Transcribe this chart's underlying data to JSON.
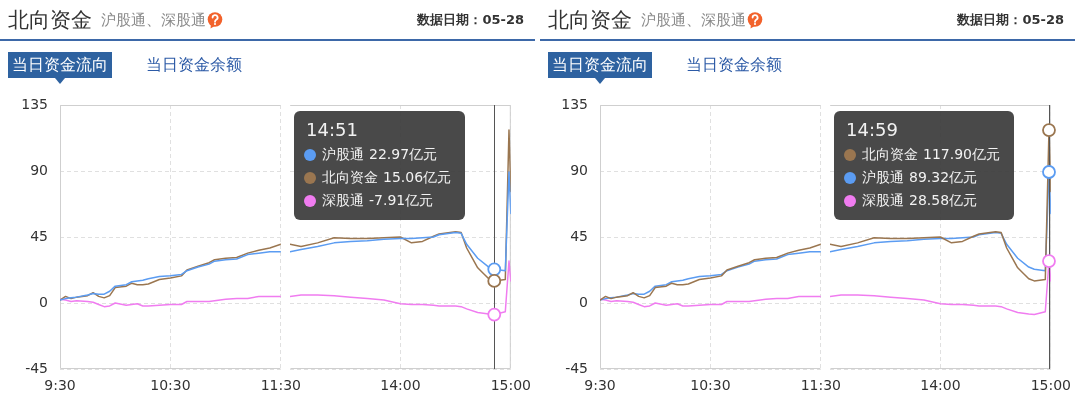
{
  "chart_data": [
    {
      "type": "line",
      "title": "北向资金",
      "subtitle": "沪股通、深股通",
      "annotations": [
        "数据日期：05-28",
        "当日资金流向",
        "当日资金余额"
      ],
      "x": [
        9.5,
        9.55,
        9.6,
        9.65,
        9.75,
        9.8,
        9.85,
        9.9,
        9.95,
        10,
        10.1,
        10.15,
        10.2,
        10.25,
        10.3,
        10.4,
        10.5,
        10.6,
        10.65,
        10.75,
        10.85,
        10.9,
        11,
        11.1,
        11.2,
        11.3,
        11.4,
        11.5
      ],
      "xlim": [
        9.5,
        11.5
      ],
      "xticks": [
        {
          "value": 9.5,
          "label": "9:30"
        },
        {
          "value": 10.5,
          "label": "10:30"
        },
        {
          "value": 11.5,
          "label": "11:30"
        }
      ],
      "ylim": [
        -45,
        135
      ],
      "yticks": [
        -45,
        0,
        45,
        90,
        135
      ],
      "grid": true,
      "series": [
        {
          "color": "#5b9cf2",
          "values": [
            2,
            3,
            3.5,
            4,
            5.5,
            6.5,
            6,
            6,
            8,
            11.5,
            12.5,
            14.5,
            15,
            15.5,
            16.5,
            18,
            18.5,
            19.5,
            22,
            24.5,
            26.5,
            28.5,
            29.5,
            30,
            33,
            34,
            35,
            35
          ]
        },
        {
          "color": "#9a7650",
          "values": [
            2,
            4.5,
            3,
            4,
            5,
            7,
            4.5,
            3.5,
            5,
            10.5,
            11.5,
            13.5,
            12.5,
            12.5,
            13,
            16,
            17,
            18.5,
            22.5,
            25,
            27.5,
            29.5,
            30.5,
            31,
            34,
            36,
            37.5,
            40
          ]
        },
        {
          "color": "#f07cf0",
          "values": [
            2.5,
            2,
            1,
            1.5,
            1,
            0.5,
            -1,
            -2.5,
            -2,
            0,
            -1.5,
            -1,
            -0.5,
            -2,
            -2,
            -1.5,
            -1,
            -1,
            1,
            1,
            1,
            1.5,
            2.5,
            3,
            3,
            4.5,
            4.5,
            4.5
          ]
        }
      ]
    },
    {
      "type": "line",
      "annotations": [
        "14:51",
        "22.97亿元",
        "15.06亿元",
        "-7.91亿元"
      ],
      "x": [
        13,
        13.1,
        13.25,
        13.4,
        13.55,
        13.7,
        13.85,
        14,
        14.1,
        14.2,
        14.3,
        14.35,
        14.5,
        14.55,
        14.6,
        14.7,
        14.8,
        14.85,
        14.95,
        14.9833,
        15
      ],
      "xlim": [
        13,
        15
      ],
      "xticks": [
        {
          "value": 14,
          "label": "14:00"
        },
        {
          "value": 15,
          "label": "15:00"
        }
      ],
      "ylim": [
        -45,
        135
      ],
      "yticks": [
        -45,
        0,
        45,
        90,
        135
      ],
      "grid": true,
      "tick_labels": "x",
      "legend": "top left",
      "ref_lines": [
        {
          "axis": "x",
          "value": 14.85,
          "color": "#555555"
        }
      ],
      "series": [
        {
          "name": "沪股通",
          "color": "#5b9cf2",
          "values": [
            35,
            36.5,
            38.5,
            41,
            42,
            42.5,
            43.5,
            44,
            44,
            44.5,
            45,
            46.5,
            48,
            47.5,
            40,
            30.5,
            24.5,
            22.97,
            22,
            89.32,
            61
          ]
        },
        {
          "name": "北向资金",
          "color": "#9a7650",
          "values": [
            40,
            38.5,
            41,
            44.5,
            44,
            44,
            44.5,
            45,
            41,
            42,
            45.5,
            47,
            48.5,
            48,
            37.5,
            24,
            16.5,
            15.06,
            16,
            117.9,
            76
          ]
        },
        {
          "name": "深股通",
          "color": "#f07cf0",
          "values": [
            4.5,
            5.5,
            5.5,
            5,
            4,
            3,
            2,
            -0.5,
            -1,
            -1,
            -1.5,
            -2,
            -2,
            -2.5,
            -4,
            -6.5,
            -7.5,
            -7.91,
            -6,
            28.58,
            15
          ]
        }
      ]
    },
    {
      "type": "line",
      "title": "北向资金",
      "subtitle": "沪股通、深股通",
      "annotations": [
        "数据日期：05-28",
        "当日资金流向",
        "当日资金余额"
      ],
      "x": [
        9.5,
        9.55,
        9.6,
        9.65,
        9.75,
        9.8,
        9.85,
        9.9,
        9.95,
        10,
        10.1,
        10.15,
        10.2,
        10.25,
        10.3,
        10.4,
        10.5,
        10.6,
        10.65,
        10.75,
        10.85,
        10.9,
        11,
        11.1,
        11.2,
        11.3,
        11.4,
        11.5
      ],
      "xlim": [
        9.5,
        11.5
      ],
      "xticks": [
        {
          "value": 9.5,
          "label": "9:30"
        },
        {
          "value": 10.5,
          "label": "10:30"
        },
        {
          "value": 11.5,
          "label": "11:30"
        }
      ],
      "ylim": [
        -45,
        135
      ],
      "yticks": [
        -45,
        0,
        45,
        90,
        135
      ],
      "grid": true,
      "series": [
        {
          "color": "#9a7650",
          "values": [
            2,
            4.5,
            3,
            4,
            5,
            7,
            4.5,
            3.5,
            5,
            10.5,
            11.5,
            13.5,
            12.5,
            12.5,
            13,
            16,
            17,
            18.5,
            22.5,
            25,
            27.5,
            29.5,
            30.5,
            31,
            34,
            36,
            37.5,
            40
          ]
        },
        {
          "color": "#5b9cf2",
          "values": [
            2,
            3,
            3.5,
            4,
            5.5,
            6.5,
            6,
            6,
            8,
            11.5,
            12.5,
            14.5,
            15,
            15.5,
            16.5,
            18,
            18.5,
            19.5,
            22,
            24.5,
            26.5,
            28.5,
            29.5,
            30,
            33,
            34,
            35,
            35
          ]
        },
        {
          "color": "#f07cf0",
          "values": [
            2.5,
            2,
            1,
            1.5,
            1,
            0.5,
            -1,
            -2.5,
            -2,
            0,
            -1.5,
            -1,
            -0.5,
            -2,
            -2,
            -1.5,
            -1,
            -1,
            1,
            1,
            1,
            1.5,
            2.5,
            3,
            3,
            4.5,
            4.5,
            4.5
          ]
        }
      ]
    },
    {
      "type": "line",
      "annotations": [
        "14:59",
        "117.90亿元",
        "89.32亿元",
        "28.58亿元"
      ],
      "x": [
        13,
        13.1,
        13.25,
        13.4,
        13.55,
        13.7,
        13.85,
        14,
        14.1,
        14.2,
        14.3,
        14.35,
        14.5,
        14.55,
        14.6,
        14.7,
        14.8,
        14.85,
        14.95,
        14.9833,
        15
      ],
      "xlim": [
        13,
        15
      ],
      "xticks": [
        {
          "value": 14,
          "label": "14:00"
        },
        {
          "value": 15,
          "label": "15:00"
        }
      ],
      "ylim": [
        -45,
        135
      ],
      "yticks": [
        -45,
        0,
        45,
        90,
        135
      ],
      "grid": true,
      "tick_labels": "x",
      "legend": "top left",
      "ref_lines": [
        {
          "axis": "x",
          "value": 14.9833,
          "color": "#555555"
        }
      ],
      "series": [
        {
          "name": "北向资金",
          "color": "#9a7650",
          "values": [
            40,
            38.5,
            41,
            44.5,
            44,
            44,
            44.5,
            45,
            41,
            42,
            45.5,
            47,
            48.5,
            48,
            37.5,
            24,
            16.5,
            15.06,
            16,
            117.9,
            76
          ]
        },
        {
          "name": "沪股通",
          "color": "#5b9cf2",
          "values": [
            35,
            36.5,
            38.5,
            41,
            42,
            42.5,
            43.5,
            44,
            44,
            44.5,
            45,
            46.5,
            48,
            47.5,
            40,
            30.5,
            24.5,
            22.97,
            22,
            89.32,
            61
          ]
        },
        {
          "name": "深股通",
          "color": "#f07cf0",
          "values": [
            4.5,
            5.5,
            5.5,
            5,
            4,
            3,
            2,
            -0.5,
            -1,
            -1,
            -1.5,
            -2,
            -2,
            -2.5,
            -4,
            -6.5,
            -7.5,
            -7.91,
            -6,
            28.58,
            15
          ]
        }
      ]
    }
  ]
}
